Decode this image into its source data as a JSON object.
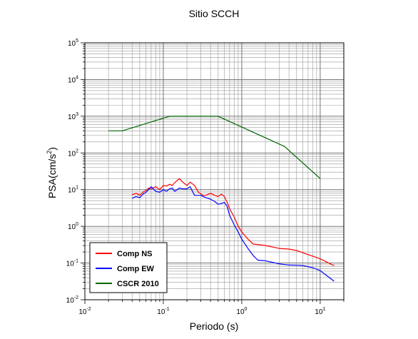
{
  "chart_data": {
    "type": "line",
    "title": "Sitio SCCH",
    "xlabel": "Periodo (s)",
    "ylabel_main": "PSA(cm/s",
    "ylabel_sup": "2",
    "ylabel_close": ")",
    "xscale": "log",
    "yscale": "log",
    "xlim": [
      0.01,
      20
    ],
    "ylim": [
      0.01,
      100000
    ],
    "grid": true,
    "legend_position": "bottom-left",
    "x_ticks": [
      {
        "value": 0.01,
        "base": "10",
        "exp": "-2"
      },
      {
        "value": 0.1,
        "base": "10",
        "exp": "-1"
      },
      {
        "value": 1,
        "base": "10",
        "exp": "0"
      },
      {
        "value": 10,
        "base": "10",
        "exp": "1"
      }
    ],
    "y_ticks": [
      {
        "value": 0.01,
        "base": "10",
        "exp": "-2"
      },
      {
        "value": 0.1,
        "base": "10",
        "exp": "-1"
      },
      {
        "value": 1,
        "base": "10",
        "exp": "0"
      },
      {
        "value": 10,
        "base": "10",
        "exp": "1"
      },
      {
        "value": 100,
        "base": "10",
        "exp": "2"
      },
      {
        "value": 1000,
        "base": "10",
        "exp": "3"
      },
      {
        "value": 10000,
        "base": "10",
        "exp": "4"
      },
      {
        "value": 100000,
        "base": "10",
        "exp": "5"
      }
    ],
    "series": [
      {
        "name": "Comp NS",
        "color": "#ff0000",
        "points": [
          [
            0.04,
            7.2
          ],
          [
            0.045,
            8.0
          ],
          [
            0.05,
            7.0
          ],
          [
            0.055,
            8.5
          ],
          [
            0.06,
            9.5
          ],
          [
            0.065,
            11.0
          ],
          [
            0.07,
            10.5
          ],
          [
            0.08,
            12.0
          ],
          [
            0.09,
            10.0
          ],
          [
            0.1,
            13.0
          ],
          [
            0.11,
            12.5
          ],
          [
            0.12,
            14.0
          ],
          [
            0.13,
            13.0
          ],
          [
            0.14,
            15.5
          ],
          [
            0.16,
            20.0
          ],
          [
            0.18,
            15.5
          ],
          [
            0.2,
            13.0
          ],
          [
            0.22,
            16.0
          ],
          [
            0.25,
            13.0
          ],
          [
            0.28,
            8.5
          ],
          [
            0.32,
            7.0
          ],
          [
            0.35,
            7.0
          ],
          [
            0.4,
            8.0
          ],
          [
            0.45,
            7.0
          ],
          [
            0.5,
            6.5
          ],
          [
            0.55,
            7.5
          ],
          [
            0.6,
            6.5
          ],
          [
            0.65,
            4.5
          ],
          [
            0.7,
            3.0
          ],
          [
            0.8,
            1.8
          ],
          [
            0.9,
            1.0
          ],
          [
            1.0,
            0.7
          ],
          [
            1.2,
            0.45
          ],
          [
            1.4,
            0.33
          ],
          [
            2.0,
            0.3
          ],
          [
            3.0,
            0.25
          ],
          [
            4.0,
            0.24
          ],
          [
            5.0,
            0.22
          ],
          [
            7.0,
            0.17
          ],
          [
            10.0,
            0.13
          ],
          [
            15.0,
            0.085
          ]
        ]
      },
      {
        "name": "Comp EW",
        "color": "#0000ff",
        "points": [
          [
            0.04,
            5.8
          ],
          [
            0.045,
            6.5
          ],
          [
            0.05,
            6.0
          ],
          [
            0.055,
            7.5
          ],
          [
            0.06,
            8.5
          ],
          [
            0.065,
            10.0
          ],
          [
            0.07,
            12.0
          ],
          [
            0.08,
            9.0
          ],
          [
            0.09,
            8.5
          ],
          [
            0.1,
            10.0
          ],
          [
            0.11,
            9.0
          ],
          [
            0.12,
            10.5
          ],
          [
            0.13,
            11.0
          ],
          [
            0.14,
            9.0
          ],
          [
            0.16,
            11.0
          ],
          [
            0.18,
            10.5
          ],
          [
            0.2,
            10.5
          ],
          [
            0.22,
            12.0
          ],
          [
            0.25,
            7.0
          ],
          [
            0.3,
            7.0
          ],
          [
            0.35,
            6.0
          ],
          [
            0.4,
            5.5
          ],
          [
            0.45,
            4.8
          ],
          [
            0.5,
            4.0
          ],
          [
            0.55,
            4.2
          ],
          [
            0.6,
            4.5
          ],
          [
            0.65,
            3.5
          ],
          [
            0.7,
            2.0
          ],
          [
            0.8,
            1.1
          ],
          [
            0.9,
            0.7
          ],
          [
            1.0,
            0.45
          ],
          [
            1.2,
            0.25
          ],
          [
            1.4,
            0.16
          ],
          [
            1.6,
            0.12
          ],
          [
            2.0,
            0.115
          ],
          [
            3.0,
            0.095
          ],
          [
            4.0,
            0.088
          ],
          [
            5.0,
            0.087
          ],
          [
            6.0,
            0.085
          ],
          [
            8.0,
            0.075
          ],
          [
            10.0,
            0.062
          ],
          [
            15.0,
            0.032
          ]
        ]
      },
      {
        "name": "CSCR 2010",
        "color": "#006400",
        "points": [
          [
            0.02,
            400
          ],
          [
            0.03,
            400
          ],
          [
            0.12,
            1000
          ],
          [
            0.5,
            1000
          ],
          [
            3.5,
            150
          ],
          [
            10.0,
            20
          ]
        ]
      }
    ]
  }
}
